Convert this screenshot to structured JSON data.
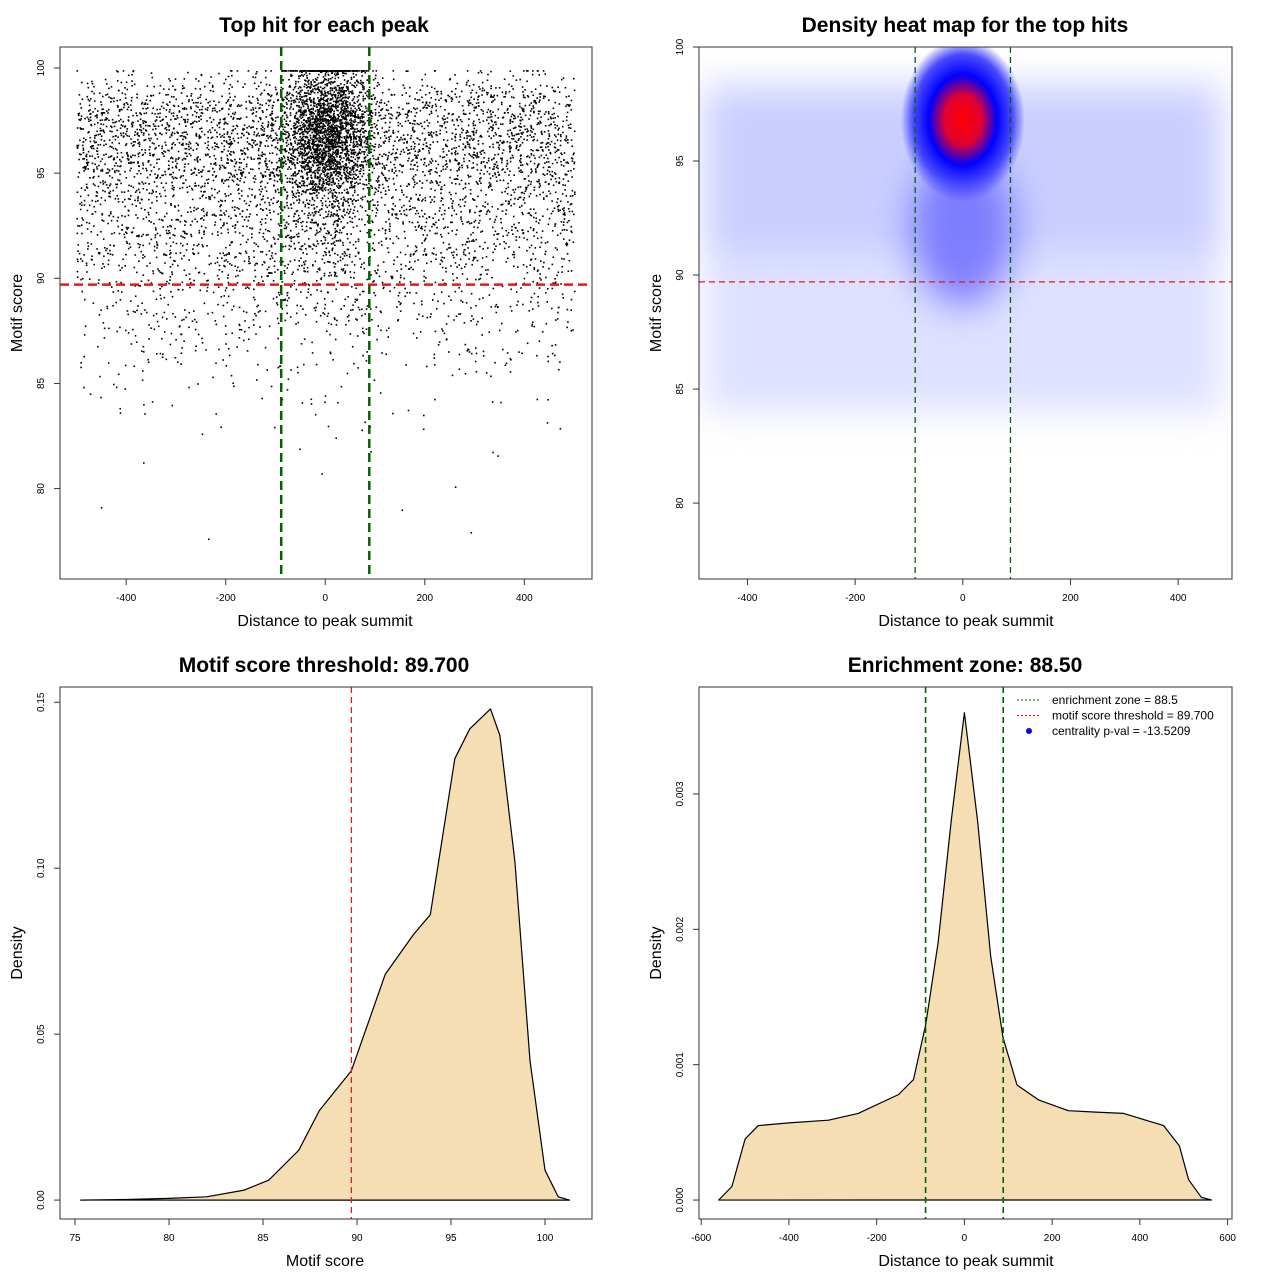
{
  "chart_data": [
    {
      "type": "scatter",
      "title": "Top hit for each peak",
      "xlabel": "Distance to peak summit",
      "ylabel": "Motif score",
      "xlim": [
        -533,
        536
      ],
      "ylim": [
        75.7,
        101
      ],
      "xticks": [
        -400,
        -200,
        0,
        200,
        400
      ],
      "yticks": [
        80,
        85,
        90,
        95,
        100
      ],
      "vlines": [
        -88.5,
        88.5
      ],
      "hline": 89.7,
      "colors": {
        "points": "#000000",
        "vlines": "#006400",
        "hline": "#e31a1c"
      }
    },
    {
      "type": "heatmap",
      "title": "Density heat map for the top hits",
      "xlabel": "Distance to peak summit",
      "ylabel": "Motif score",
      "xlim": [
        -490,
        500
      ],
      "ylim": [
        76.67,
        100
      ],
      "xticks": [
        -400,
        -200,
        0,
        200,
        400
      ],
      "yticks": [
        80,
        85,
        90,
        95,
        100
      ],
      "peak": {
        "x": 0,
        "y": 97
      },
      "vlines": [
        -88.5,
        88.5
      ],
      "hline": 89.7,
      "colors": {
        "low": "#ffffff",
        "mid": "#0000ff",
        "high": "#ff0000"
      }
    },
    {
      "type": "area",
      "title": "Motif score threshold: 89.700",
      "xlabel": "Motif score",
      "ylabel": "Density",
      "xlim": [
        74.2,
        102.5
      ],
      "ylim": [
        -0.0057,
        0.1546
      ],
      "xticks": [
        75,
        80,
        85,
        90,
        95,
        100
      ],
      "yticks": [
        0.0,
        0.05,
        0.1,
        0.15
      ],
      "ytick_labels": [
        "0.00",
        "0.05",
        "0.10",
        "0.15"
      ],
      "vline": 89.7,
      "fill": "#f5deb3",
      "x": [
        75.3,
        78,
        80,
        82,
        84,
        85.3,
        86.9,
        88,
        89.7,
        91.5,
        93,
        93.9,
        95.2,
        96,
        97.1,
        97.6,
        98.4,
        99.2,
        100,
        100.7,
        101.3
      ],
      "y": [
        0,
        0.0002,
        0.0005,
        0.001,
        0.003,
        0.006,
        0.015,
        0.027,
        0.039,
        0.068,
        0.08,
        0.086,
        0.133,
        0.142,
        0.148,
        0.14,
        0.102,
        0.042,
        0.009,
        0.001,
        0
      ]
    },
    {
      "type": "area",
      "title": "Enrichment zone: 88.50",
      "xlabel": "Distance to peak summit",
      "ylabel": "Density",
      "xlim": [
        -605,
        610
      ],
      "ylim": [
        -0.00014,
        0.00379
      ],
      "xticks": [
        -600,
        -400,
        -200,
        0,
        200,
        400,
        600
      ],
      "yticks": [
        0,
        0.001,
        0.002,
        0.003
      ],
      "ytick_labels": [
        "0.000",
        "0.001",
        "0.002",
        "0.003"
      ],
      "vlines": [
        -88.5,
        88.5
      ],
      "fill": "#f5deb3",
      "x": [
        -560,
        -530,
        -500,
        -470,
        -400,
        -310,
        -242,
        -150,
        -116,
        -88,
        -60,
        -30,
        0,
        30,
        60,
        88,
        120,
        169,
        237,
        300,
        363,
        454,
        490,
        511,
        540,
        563
      ],
      "y": [
        0,
        0.0001,
        0.00045,
        0.00055,
        0.00057,
        0.00059,
        0.00064,
        0.00078,
        0.00089,
        0.0013,
        0.0019,
        0.0028,
        0.0036,
        0.0028,
        0.0018,
        0.0012,
        0.00085,
        0.00074,
        0.00066,
        0.00065,
        0.00064,
        0.00055,
        0.0004,
        0.00015,
        2e-05,
        0
      ],
      "legend": [
        {
          "label": "enrichment zone = 88.5",
          "style": "dotted",
          "color": "#006400"
        },
        {
          "label": "motif score threshold = 89.700",
          "style": "dotted",
          "color": "#ff0000"
        },
        {
          "label": "centrality p-val = -13.5209",
          "style": "point",
          "color": "#0000ff"
        }
      ],
      "legend_position": "top-right"
    }
  ]
}
